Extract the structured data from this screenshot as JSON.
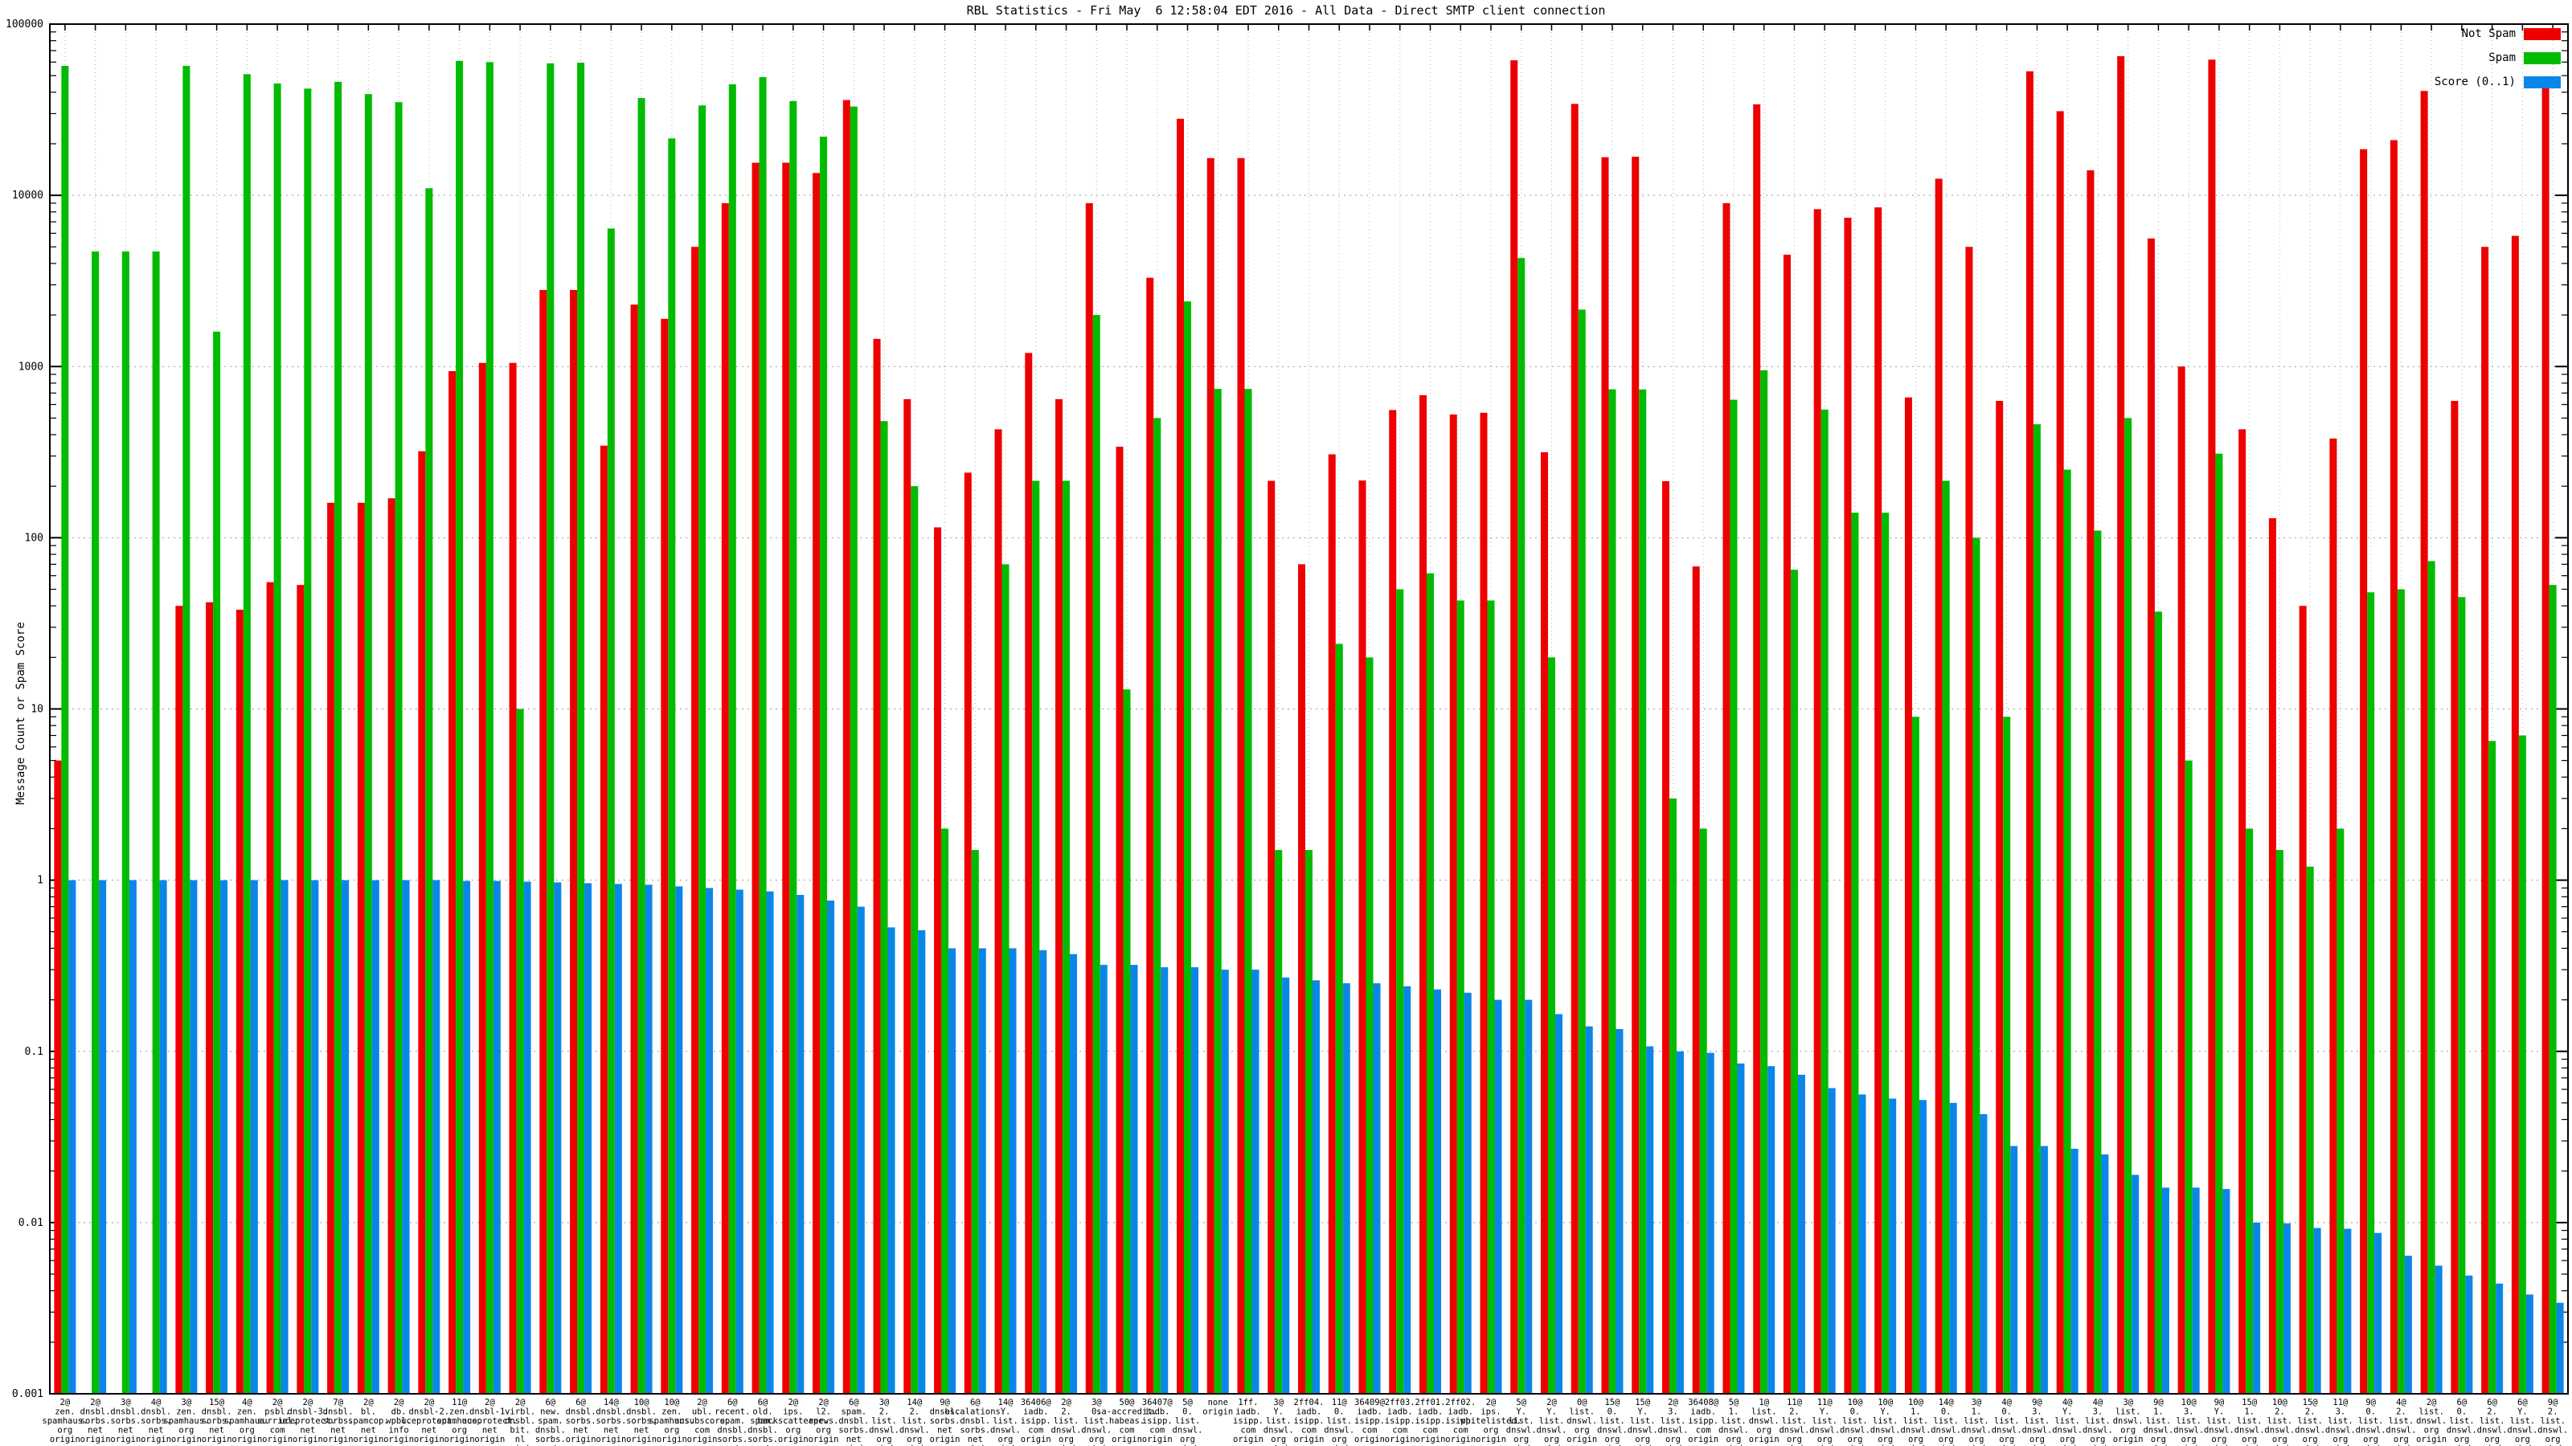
{
  "title": "RBL Statistics - Fri May  6 12:58:04 EDT 2016 - All Data - Direct SMTP client connection",
  "y_axis": {
    "label": "Message Count or Spam Score",
    "tick_labels": [
      "100000",
      "10000",
      "1000",
      "100",
      "10",
      "1",
      "0.1",
      "0.01",
      "0.001"
    ]
  },
  "legend": {
    "items": [
      {
        "label": "Not Spam",
        "color": "#ee0000"
      },
      {
        "label": "Spam",
        "color": "#00bb00"
      },
      {
        "label": "Score (0..1)",
        "color": "#0b86e8"
      }
    ]
  },
  "colors": {
    "not_spam": "#ee0000",
    "spam": "#00bb00",
    "score": "#0b86e8",
    "grid_h": "#9a9a9a",
    "grid_v": "#b4b4b4",
    "axis": "#000000"
  },
  "chart_data": {
    "type": "bar",
    "log_y": true,
    "ylim": [
      0.001,
      100000
    ],
    "title": "RBL Statistics - Fri May  6 12:58:04 EDT 2016 - All Data - Direct SMTP client connection",
    "ylabel": "Message Count or Spam Score",
    "grid": true,
    "legend_position": "top-right",
    "series_names": [
      "Not Spam",
      "Spam",
      "Score (0..1)"
    ],
    "groups": [
      {
        "tick": "2@\nzen.\nspamhaus.\norg\norigin",
        "not_spam": 5,
        "spam": 57000,
        "score": 1.0
      },
      {
        "tick": "2@\ndnsbl.\nsorbs.\nnet\norigin",
        "not_spam": 0,
        "spam": 4700,
        "score": 1.0
      },
      {
        "tick": "3@\ndnsbl.\nsorbs.\nnet\norigin",
        "not_spam": 0,
        "spam": 4700,
        "score": 1.0
      },
      {
        "tick": "4@\ndnsbl.\nsorbs.\nnet\norigin",
        "not_spam": 0,
        "spam": 4700,
        "score": 1.0
      },
      {
        "tick": "3@\nzen.\nspamhaus.\norg\norigin",
        "not_spam": 40,
        "spam": 57000,
        "score": 1.0
      },
      {
        "tick": "15@\ndnsbl.\nsorbs.\nnet\norigin",
        "not_spam": 42,
        "spam": 1600,
        "score": 1.0
      },
      {
        "tick": "4@\nzen.\nspamhaus.\norg\norigin",
        "not_spam": 38,
        "spam": 51000,
        "score": 1.0
      },
      {
        "tick": "2@\npsbl.\nsurriel.\ncom\norigin",
        "not_spam": 55,
        "spam": 45000,
        "score": 1.0
      },
      {
        "tick": "2@\ndnsbl-3.\nuceprotect.\nnet\norigin",
        "not_spam": 53,
        "spam": 42000,
        "score": 1.0
      },
      {
        "tick": "7@\ndnsbl.\nsorbs.\nnet\norigin",
        "not_spam": 160,
        "spam": 46000,
        "score": 1.0
      },
      {
        "tick": "2@\nbl.\nspamcop.\nnet\norigin",
        "not_spam": 160,
        "spam": 39000,
        "score": 1.0
      },
      {
        "tick": "2@\ndb.\nwpbl.\ninfo\norigin",
        "not_spam": 170,
        "spam": 35000,
        "score": 1.0
      },
      {
        "tick": "2@\ndnsbl-2.\nuceprotect.\nnet\norigin",
        "not_spam": 320,
        "spam": 11000,
        "score": 1.0
      },
      {
        "tick": "11@\nzen.\nspamhaus.\norg\norigin",
        "not_spam": 940,
        "spam": 61000,
        "score": 0.99
      },
      {
        "tick": "2@\ndnsbl-1.\nuceprotect.\nnet\norigin",
        "not_spam": 1050,
        "spam": 60000,
        "score": 0.99
      },
      {
        "tick": "2@\nvirbl.\ndnsbl.\nbit.\nnl\norigin",
        "not_spam": 1050,
        "spam": 10,
        "score": 0.98
      },
      {
        "tick": "6@\nnew.\nspam.\ndnsbl.\nsorbs.\nnet\norigin",
        "not_spam": 2800,
        "spam": 59000,
        "score": 0.97
      },
      {
        "tick": "6@\ndnsbl.\nsorbs.\nnet\norigin",
        "not_spam": 2800,
        "spam": 59500,
        "score": 0.96
      },
      {
        "tick": "14@\ndnsbl.\nsorbs.\nnet\norigin",
        "not_spam": 345,
        "spam": 6400,
        "score": 0.95
      },
      {
        "tick": "10@\ndnsbl.\nsorbs.\nnet\norigin",
        "not_spam": 2300,
        "spam": 37000,
        "score": 0.94
      },
      {
        "tick": "10@\nzen.\nspamhaus.\norg\norigin",
        "not_spam": 1900,
        "spam": 21500,
        "score": 0.92
      },
      {
        "tick": "2@\nubl.\nunsubscore.\ncom\norigin",
        "not_spam": 5000,
        "spam": 33500,
        "score": 0.9
      },
      {
        "tick": "6@\nrecent.\nspam.\ndnsbl.\nsorbs.\nnet\norigin",
        "not_spam": 9000,
        "spam": 44500,
        "score": 0.88
      },
      {
        "tick": "6@\nold.\nspam.\ndnsbl.\nsorbs.\nnet\norigin",
        "not_spam": 15500,
        "spam": 49000,
        "score": 0.86
      },
      {
        "tick": "2@\nips.\nbackscatterer.\norg\norigin",
        "not_spam": 15500,
        "spam": 35500,
        "score": 0.82
      },
      {
        "tick": "2@\nl2.\napews.\norg\norigin",
        "not_spam": 13500,
        "spam": 22000,
        "score": 0.76
      },
      {
        "tick": "6@\nspam.\ndnsbl.\nsorbs.\nnet\norigin",
        "not_spam": 36000,
        "spam": 33000,
        "score": 0.7
      },
      {
        "tick": "3@\n2.\nlist.\ndnswl.\norg\norigin",
        "not_spam": 1450,
        "spam": 480,
        "score": 0.53
      },
      {
        "tick": "14@\n2.\nlist.\ndnswl.\norg\norigin",
        "not_spam": 645,
        "spam": 200,
        "score": 0.51
      },
      {
        "tick": "9@\ndnsbl.\nsorbs.\nnet\norigin",
        "not_spam": 115,
        "spam": 2,
        "score": 0.4
      },
      {
        "tick": "6@\nescalations.\ndnsbl.\nsorbs.\nnet\norigin",
        "not_spam": 240,
        "spam": 1.5,
        "score": 0.4
      },
      {
        "tick": "14@\nY.\nlist.\ndnswl.\norg\norigin",
        "not_spam": 430,
        "spam": 70,
        "score": 0.4
      },
      {
        "tick": "36406@\niadb.\nisipp.\ncom\norigin",
        "not_spam": 1200,
        "spam": 215,
        "score": 0.39
      },
      {
        "tick": "2@\n2.\nlist.\ndnswl.\norg\norigin",
        "not_spam": 645,
        "spam": 215,
        "score": 0.37
      },
      {
        "tick": "3@\n0.\nlist.\ndnswl.\norg\norigin",
        "not_spam": 9000,
        "spam": 2000,
        "score": 0.32
      },
      {
        "tick": "50@\nsa-accredit.\nhabeas.\ncom\norigin",
        "not_spam": 340,
        "spam": 13,
        "score": 0.32
      },
      {
        "tick": "36407@\niadb.\nisipp.\ncom\norigin",
        "not_spam": 3300,
        "spam": 500,
        "score": 0.31
      },
      {
        "tick": "5@\n0.\nlist.\ndnswl.\norg\norigin",
        "not_spam": 28000,
        "spam": 2400,
        "score": 0.31
      },
      {
        "tick": "none\norigin",
        "not_spam": 16500,
        "spam": 740,
        "score": 0.3
      },
      {
        "tick": "1ff.\niadb.\nisipp.\ncom\norigin",
        "not_spam": 16500,
        "spam": 740,
        "score": 0.3
      },
      {
        "tick": "3@\nY.\nlist.\ndnswl.\norg\norigin",
        "not_spam": 215,
        "spam": 1.5,
        "score": 0.27
      },
      {
        "tick": "2ff04.\niadb.\nisipp.\ncom\norigin",
        "not_spam": 70,
        "spam": 1.5,
        "score": 0.26
      },
      {
        "tick": "11@\n0.\nlist.\ndnswl.\norg\norigin",
        "not_spam": 307,
        "spam": 24,
        "score": 0.25
      },
      {
        "tick": "36409@\niadb.\nisipp.\ncom\norigin",
        "not_spam": 216,
        "spam": 20,
        "score": 0.25
      },
      {
        "tick": "2ff03.\niadb.\nisipp.\ncom\norigin",
        "not_spam": 557,
        "spam": 50,
        "score": 0.24
      },
      {
        "tick": "2ff01.\niadb.\nisipp.\ncom\norigin",
        "not_spam": 680,
        "spam": 62,
        "score": 0.23
      },
      {
        "tick": "2ff02.\niadb.\nisipp.\ncom\norigin",
        "not_spam": 525,
        "spam": 43,
        "score": 0.22
      },
      {
        "tick": "2@\nips.\nwhitelisted.\norg\norigin",
        "not_spam": 537,
        "spam": 43,
        "score": 0.2
      },
      {
        "tick": "5@\nY.\nlist.\ndnswl.\norg\norigin",
        "not_spam": 61500,
        "spam": 4300,
        "score": 0.2
      },
      {
        "tick": "2@\nY.\nlist.\ndnswl.\norg\norigin",
        "not_spam": 316,
        "spam": 20,
        "score": 0.165
      },
      {
        "tick": "0@\nlist.\ndnswl.\norg\norigin",
        "not_spam": 34200,
        "spam": 2150,
        "score": 0.14
      },
      {
        "tick": "15@\n0.\nlist.\ndnswl.\norg\norigin",
        "not_spam": 16700,
        "spam": 736,
        "score": 0.135
      },
      {
        "tick": "15@\nY.\nlist.\ndnswl.\norg\norigin",
        "not_spam": 16800,
        "spam": 735,
        "score": 0.107
      },
      {
        "tick": "2@\n3.\nlist.\ndnswl.\norg\norigin",
        "not_spam": 214,
        "spam": 3,
        "score": 0.1
      },
      {
        "tick": "36408@\niadb.\nisipp.\ncom\norigin",
        "not_spam": 68,
        "spam": 2,
        "score": 0.098
      },
      {
        "tick": "5@\n1.\nlist.\ndnswl.\norg\norigin",
        "not_spam": 9000,
        "spam": 640,
        "score": 0.085
      },
      {
        "tick": "1@\nlist.\ndnswl.\norg\norigin",
        "not_spam": 34000,
        "spam": 950,
        "score": 0.082
      },
      {
        "tick": "11@\n2.\nlist.\ndnswl.\norg\norigin",
        "not_spam": 4500,
        "spam": 65,
        "score": 0.073
      },
      {
        "tick": "11@\nY.\nlist.\ndnswl.\norg\norigin",
        "not_spam": 8300,
        "spam": 560,
        "score": 0.061
      },
      {
        "tick": "10@\n0.\nlist.\ndnswl.\norg\norigin",
        "not_spam": 7400,
        "spam": 140,
        "score": 0.056
      },
      {
        "tick": "10@\nY.\nlist.\ndnswl.\norg\norigin",
        "not_spam": 8500,
        "spam": 140,
        "score": 0.053
      },
      {
        "tick": "10@\n1.\nlist.\ndnswl.\norg\norigin",
        "not_spam": 660,
        "spam": 9,
        "score": 0.052
      },
      {
        "tick": "14@\n0.\nlist.\ndnswl.\norg\norigin",
        "not_spam": 12500,
        "spam": 215,
        "score": 0.05
      },
      {
        "tick": "3@\n1.\nlist.\ndnswl.\norg\norigin",
        "not_spam": 5000,
        "spam": 100,
        "score": 0.043
      },
      {
        "tick": "4@\n0.\nlist.\ndnswl.\norg\norigin",
        "not_spam": 630,
        "spam": 9,
        "score": 0.028
      },
      {
        "tick": "9@\n3.\nlist.\ndnswl.\norg\norigin",
        "not_spam": 53000,
        "spam": 460,
        "score": 0.028
      },
      {
        "tick": "4@\nY.\nlist.\ndnswl.\norg\norigin",
        "not_spam": 31000,
        "spam": 250,
        "score": 0.027
      },
      {
        "tick": "4@\n3.\nlist.\ndnswl.\norg\norigin",
        "not_spam": 14000,
        "spam": 110,
        "score": 0.025
      },
      {
        "tick": "3@\nlist.\ndnswl.\norg\norigin",
        "not_spam": 65000,
        "spam": 500,
        "score": 0.019
      },
      {
        "tick": "9@\n1.\nlist.\ndnswl.\norg\norigin",
        "not_spam": 5600,
        "spam": 37,
        "score": 0.016
      },
      {
        "tick": "10@\n3.\nlist.\ndnswl.\norg\norigin",
        "not_spam": 1000,
        "spam": 5,
        "score": 0.016
      },
      {
        "tick": "9@\nY.\nlist.\ndnswl.\norg\norigin",
        "not_spam": 62000,
        "spam": 310,
        "score": 0.0157
      },
      {
        "tick": "15@\n1.\nlist.\ndnswl.\norg\norigin",
        "not_spam": 430,
        "spam": 2,
        "score": 0.01
      },
      {
        "tick": "10@\n2.\nlist.\ndnswl.\norg\norigin",
        "not_spam": 130,
        "spam": 1.5,
        "score": 0.0099
      },
      {
        "tick": "15@\n2.\nlist.\ndnswl.\norg\norigin",
        "not_spam": 40,
        "spam": 1.2,
        "score": 0.0093
      },
      {
        "tick": "11@\n3.\nlist.\ndnswl.\norg\norigin",
        "not_spam": 380,
        "spam": 2,
        "score": 0.0092
      },
      {
        "tick": "9@\n0.\nlist.\ndnswl.\norg\norigin",
        "not_spam": 18600,
        "spam": 48,
        "score": 0.0087
      },
      {
        "tick": "4@\n2.\nlist.\ndnswl.\norg\norigin",
        "not_spam": 21000,
        "spam": 50,
        "score": 0.0064
      },
      {
        "tick": "2@\nlist.\ndnswl.\norg\norigin",
        "not_spam": 40700,
        "spam": 73,
        "score": 0.0056
      },
      {
        "tick": "6@\n0.\nlist.\ndnswl.\norg\norigin",
        "not_spam": 630,
        "spam": 45,
        "score": 0.0049
      },
      {
        "tick": "6@\n2.\nlist.\ndnswl.\norg\norigin",
        "not_spam": 5000,
        "spam": 6.5,
        "score": 0.0044
      },
      {
        "tick": "6@\nY.\nlist.\ndnswl.\norg\norigin",
        "not_spam": 5800,
        "spam": 7,
        "score": 0.0038
      },
      {
        "tick": "9@\n2.\nlist.\ndnswl.\norg\norigin",
        "not_spam": 45000,
        "spam": 53,
        "score": 0.0034
      }
    ]
  }
}
